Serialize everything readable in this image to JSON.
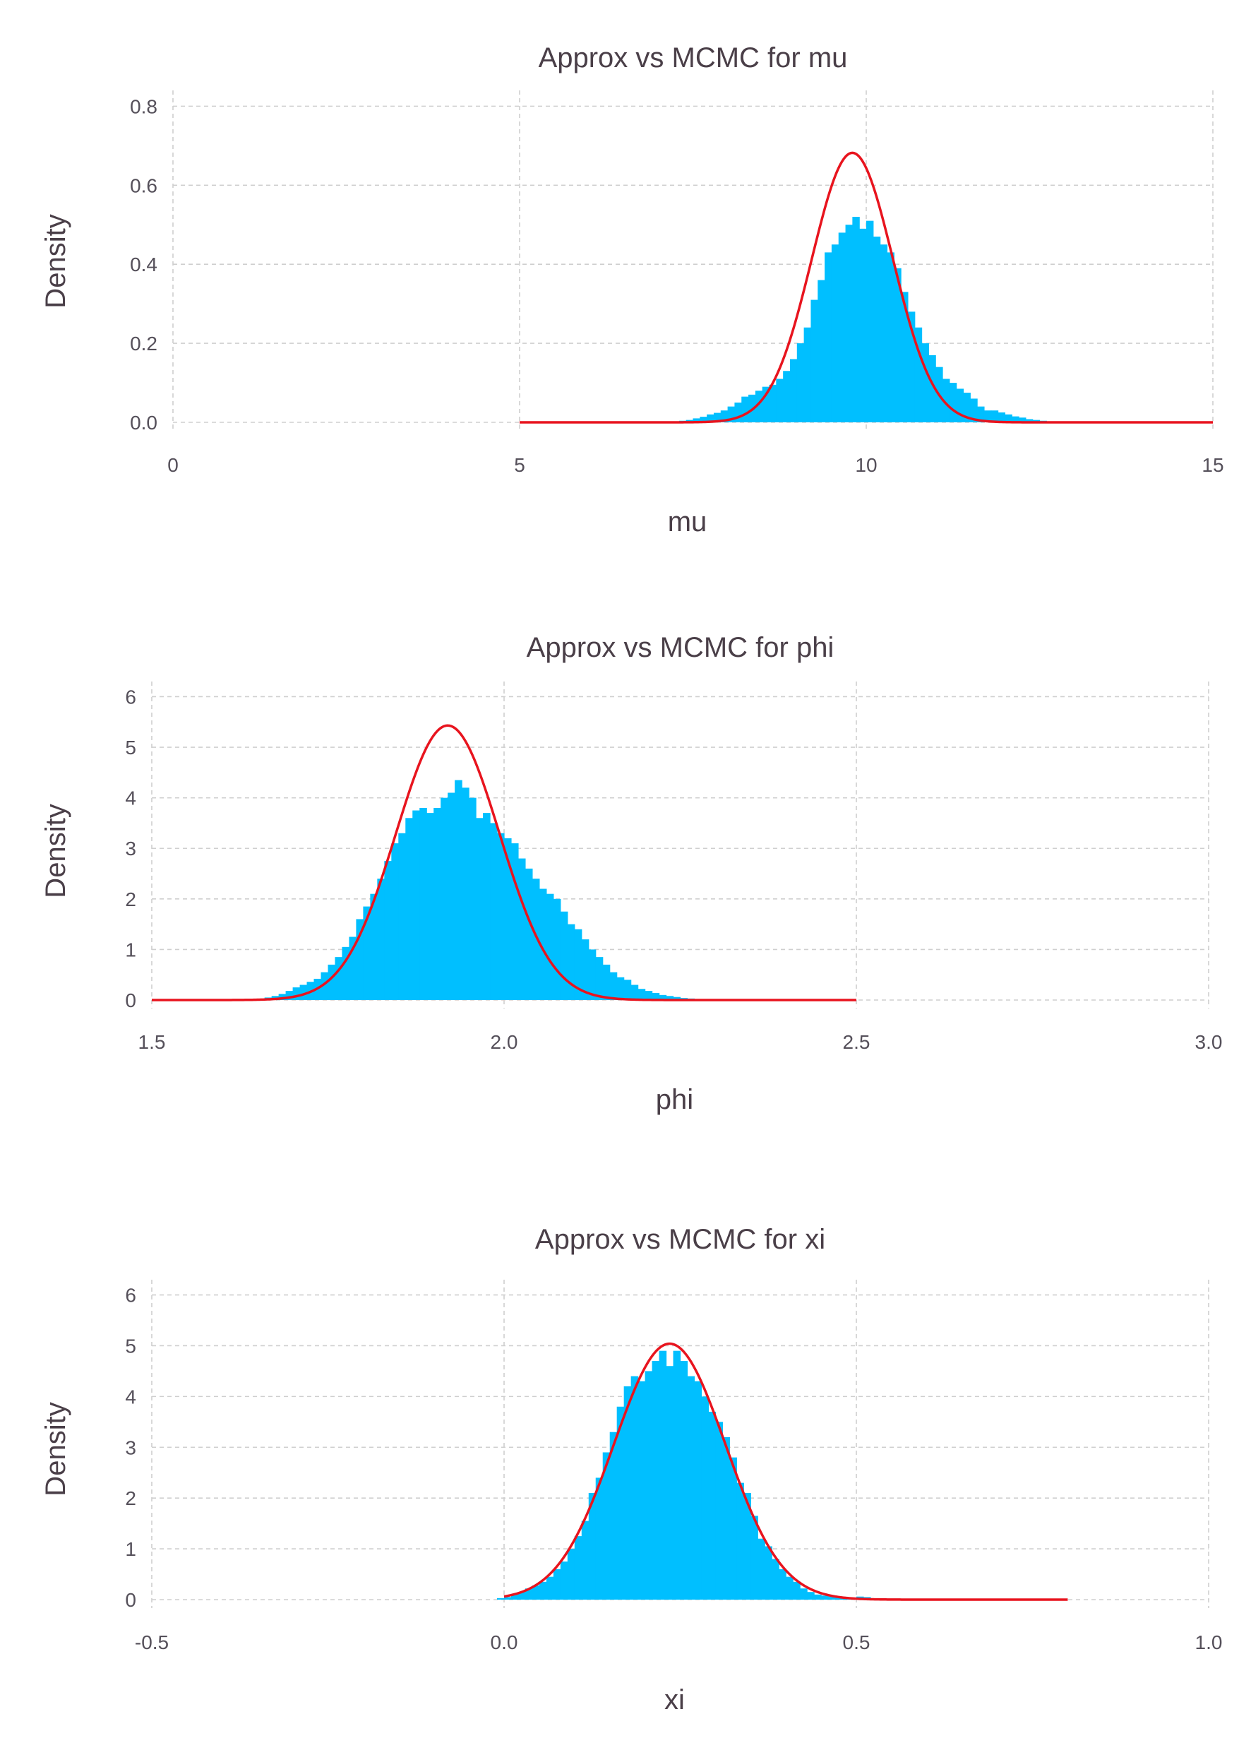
{
  "colors": {
    "histogram": "#00bfff",
    "approx_curve": "#e8141e",
    "grid": "#cfcfcf",
    "text": "#4a3f48"
  },
  "chart_data": [
    {
      "type": "histogram",
      "title": "Approx vs MCMC for mu",
      "xlabel": "mu",
      "ylabel": "Density",
      "xlim": [
        0,
        15
      ],
      "ylim": [
        0,
        0.84
      ],
      "xticks": [
        0,
        5,
        10,
        15
      ],
      "xtick_labels": [
        "0",
        "5",
        "10",
        "15"
      ],
      "yticks": [
        0,
        0.2,
        0.4,
        0.6,
        0.8
      ],
      "ytick_labels": [
        "0.0",
        "0.2",
        "0.4",
        "0.6",
        "0.8"
      ],
      "grid": true,
      "histogram": {
        "bin_width": 0.1,
        "bin_starts": [
          7.3,
          7.4,
          7.5,
          7.6,
          7.7,
          7.8,
          7.9,
          8.0,
          8.1,
          8.2,
          8.3,
          8.4,
          8.5,
          8.6,
          8.7,
          8.8,
          8.9,
          9.0,
          9.1,
          9.2,
          9.3,
          9.4,
          9.5,
          9.6,
          9.7,
          9.8,
          9.9,
          10.0,
          10.1,
          10.2,
          10.3,
          10.4,
          10.5,
          10.6,
          10.7,
          10.8,
          10.9,
          11.0,
          11.1,
          11.2,
          11.3,
          11.4,
          11.5,
          11.6,
          11.7,
          11.8,
          11.9,
          12.0,
          12.1,
          12.2,
          12.3,
          12.4,
          12.5,
          12.6
        ],
        "values": [
          0.004,
          0.006,
          0.01,
          0.014,
          0.02,
          0.024,
          0.03,
          0.04,
          0.05,
          0.065,
          0.07,
          0.08,
          0.09,
          0.095,
          0.11,
          0.13,
          0.16,
          0.2,
          0.24,
          0.31,
          0.36,
          0.43,
          0.45,
          0.48,
          0.5,
          0.52,
          0.49,
          0.51,
          0.47,
          0.45,
          0.43,
          0.39,
          0.33,
          0.28,
          0.24,
          0.2,
          0.17,
          0.14,
          0.11,
          0.1,
          0.085,
          0.075,
          0.06,
          0.04,
          0.03,
          0.03,
          0.025,
          0.02,
          0.015,
          0.012,
          0.008,
          0.006,
          0.004,
          0.002
        ]
      },
      "approx_curve": {
        "distribution": "normal",
        "mean": 9.8,
        "sd": 0.585,
        "peak_density": 0.682,
        "x_range": [
          5,
          15
        ]
      }
    },
    {
      "type": "histogram",
      "title": "Approx vs MCMC for phi",
      "xlabel": "phi",
      "ylabel": "Density",
      "xlim": [
        1.5,
        3.0
      ],
      "ylim": [
        0,
        6.3
      ],
      "xticks": [
        1.5,
        2.0,
        2.5,
        3.0
      ],
      "xtick_labels": [
        "1.5",
        "2.0",
        "2.5",
        "3.0"
      ],
      "yticks": [
        0,
        1,
        2,
        3,
        4,
        5,
        6
      ],
      "ytick_labels": [
        "0",
        "1",
        "2",
        "3",
        "4",
        "5",
        "6"
      ],
      "grid": true,
      "histogram": {
        "bin_width": 0.01,
        "bin_starts": [
          1.66,
          1.67,
          1.68,
          1.69,
          1.7,
          1.71,
          1.72,
          1.73,
          1.74,
          1.75,
          1.76,
          1.77,
          1.78,
          1.79,
          1.8,
          1.81,
          1.82,
          1.83,
          1.84,
          1.85,
          1.86,
          1.87,
          1.88,
          1.89,
          1.9,
          1.91,
          1.92,
          1.93,
          1.94,
          1.95,
          1.96,
          1.97,
          1.98,
          1.99,
          2.0,
          2.01,
          2.02,
          2.03,
          2.04,
          2.05,
          2.06,
          2.07,
          2.08,
          2.09,
          2.1,
          2.11,
          2.12,
          2.13,
          2.14,
          2.15,
          2.16,
          2.17,
          2.18,
          2.19,
          2.2,
          2.21,
          2.22,
          2.23,
          2.24,
          2.25,
          2.26,
          2.27
        ],
        "values": [
          0.05,
          0.08,
          0.12,
          0.18,
          0.25,
          0.3,
          0.36,
          0.42,
          0.55,
          0.7,
          0.85,
          1.05,
          1.25,
          1.6,
          1.85,
          2.1,
          2.4,
          2.75,
          3.1,
          3.3,
          3.6,
          3.75,
          3.8,
          3.7,
          3.8,
          4.0,
          4.1,
          4.35,
          4.2,
          4.0,
          3.6,
          3.7,
          3.5,
          3.3,
          3.2,
          3.1,
          2.8,
          2.6,
          2.4,
          2.2,
          2.1,
          2.0,
          1.75,
          1.5,
          1.4,
          1.2,
          1.0,
          0.85,
          0.7,
          0.55,
          0.45,
          0.4,
          0.3,
          0.22,
          0.18,
          0.14,
          0.1,
          0.08,
          0.06,
          0.04,
          0.03,
          0.02
        ]
      },
      "approx_curve": {
        "distribution": "normal",
        "mean": 1.92,
        "sd": 0.0735,
        "peak_density": 5.43,
        "x_range": [
          1.5,
          2.5
        ]
      }
    },
    {
      "type": "histogram",
      "title": "Approx vs MCMC for xi",
      "xlabel": "xi",
      "ylabel": "Density",
      "xlim": [
        -0.5,
        1.0
      ],
      "ylim": [
        0,
        6.3
      ],
      "xticks": [
        -0.5,
        0.0,
        0.5,
        1.0
      ],
      "xtick_labels": [
        "-0.5",
        "0.0",
        "0.5",
        "1.0"
      ],
      "yticks": [
        0,
        1,
        2,
        3,
        4,
        5,
        6
      ],
      "ytick_labels": [
        "0",
        "1",
        "2",
        "3",
        "4",
        "5",
        "6"
      ],
      "grid": true,
      "histogram": {
        "bin_width": 0.01,
        "bin_starts": [
          -0.01,
          0.0,
          0.01,
          0.02,
          0.03,
          0.04,
          0.05,
          0.06,
          0.07,
          0.08,
          0.09,
          0.1,
          0.11,
          0.12,
          0.13,
          0.14,
          0.15,
          0.16,
          0.17,
          0.18,
          0.19,
          0.2,
          0.21,
          0.22,
          0.23,
          0.24,
          0.25,
          0.26,
          0.27,
          0.28,
          0.29,
          0.3,
          0.31,
          0.32,
          0.33,
          0.34,
          0.35,
          0.36,
          0.37,
          0.38,
          0.39,
          0.4,
          0.41,
          0.42,
          0.43,
          0.44,
          0.45,
          0.46,
          0.47,
          0.48,
          0.49,
          0.5,
          0.51,
          0.52
        ],
        "values": [
          0.03,
          0.05,
          0.1,
          0.15,
          0.22,
          0.28,
          0.35,
          0.45,
          0.6,
          0.75,
          1.0,
          1.25,
          1.55,
          2.1,
          2.4,
          2.9,
          3.3,
          3.8,
          4.2,
          4.4,
          4.3,
          4.5,
          4.7,
          4.9,
          4.6,
          4.9,
          4.7,
          4.4,
          4.3,
          4.0,
          3.7,
          3.5,
          3.2,
          2.8,
          2.3,
          2.1,
          1.65,
          1.2,
          1.05,
          0.8,
          0.6,
          0.45,
          0.35,
          0.22,
          0.15,
          0.1,
          0.08,
          0.06,
          0.05,
          0.03,
          0.03,
          0.06,
          0.05,
          0.02
        ]
      },
      "approx_curve": {
        "distribution": "normal",
        "mean": 0.235,
        "sd": 0.0792,
        "peak_density": 5.04,
        "x_range": [
          0.0,
          0.8
        ]
      }
    }
  ]
}
